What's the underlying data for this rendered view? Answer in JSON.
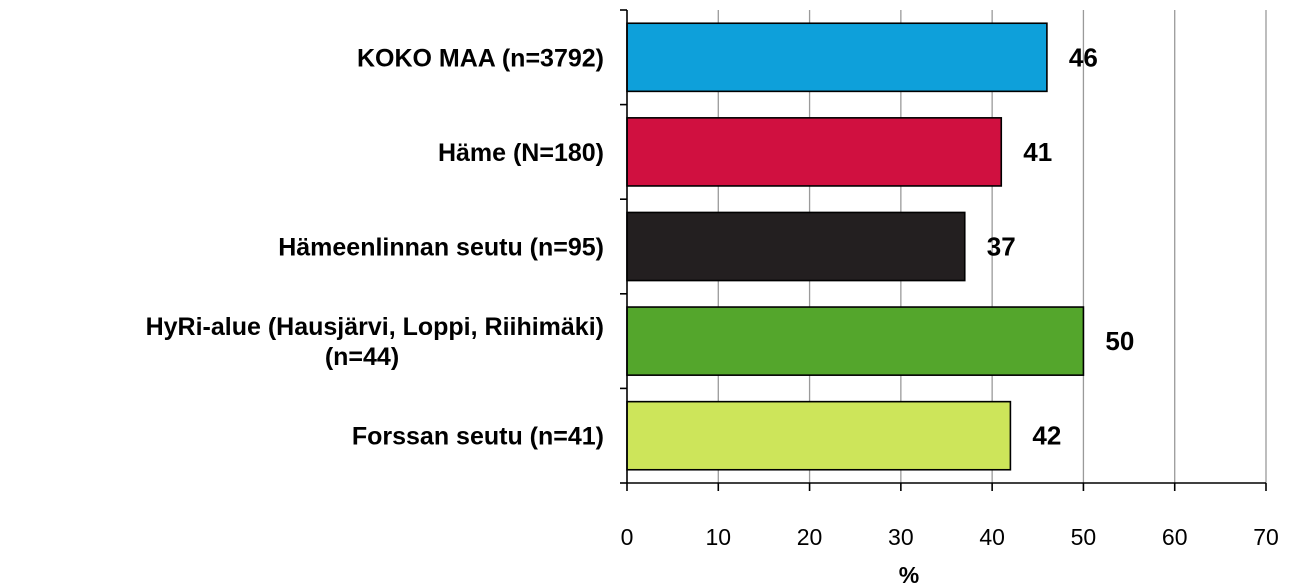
{
  "chart_data": {
    "type": "bar",
    "orientation": "horizontal",
    "categories": [
      "KOKO MAA (n=3792)",
      "Häme (N=180)",
      "Hämeenlinnan seutu (n=95)",
      "HyRi-alue (Hausjärvi, Loppi, Riihimäki) (n=44)",
      "Forssan seutu (n=41)"
    ],
    "category_lines": [
      [
        "KOKO MAA (n=3792)"
      ],
      [
        "Häme (N=180)"
      ],
      [
        "Hämeenlinnan seutu (n=95)"
      ],
      [
        "HyRi-alue (Hausjärvi, Loppi, Riihimäki)",
        "(n=44)"
      ],
      [
        "Forssan seutu (n=41)"
      ]
    ],
    "values": [
      46,
      41,
      37,
      50,
      42
    ],
    "value_labels": [
      "46",
      "41",
      "37",
      "50",
      "42"
    ],
    "colors": [
      "#0EA0DA",
      "#D01040",
      "#231F20",
      "#54A62C",
      "#CDE55A"
    ],
    "xlabel": "%",
    "ylabel": "",
    "xlim": [
      0,
      70
    ],
    "xticks": [
      0,
      10,
      20,
      30,
      40,
      50,
      60,
      70
    ],
    "xtick_labels": [
      "0",
      "10",
      "20",
      "30",
      "40",
      "50",
      "60",
      "70"
    ],
    "grid": true,
    "legend": "none"
  }
}
